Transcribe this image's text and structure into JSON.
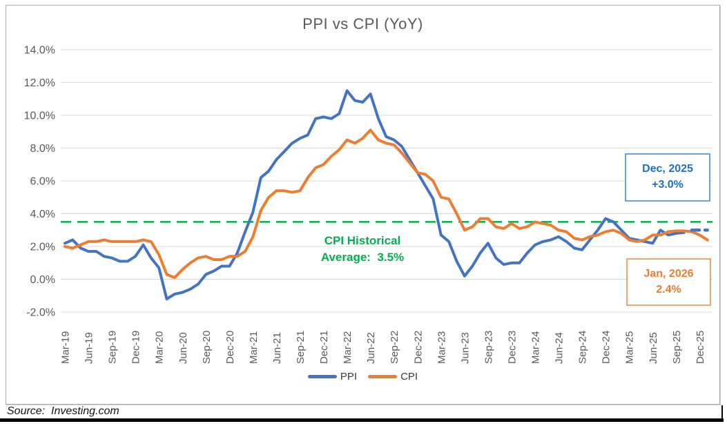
{
  "title": "PPI vs CPI (YoY)",
  "source": "Source:  Investing.com",
  "annotations": {
    "avg_label": {
      "line1": "CPI Historical",
      "line2": "Average:  3.5%"
    },
    "ppi_box": {
      "line1": "Dec, 2025",
      "line2": "+3.0%"
    },
    "cpi_box": {
      "line1": "Jan, 2026",
      "line2": "2.4%"
    }
  },
  "legend": [
    {
      "label": "PPI",
      "color": "#4472C4"
    },
    {
      "label": "CPI",
      "color": "#ED7D31"
    }
  ],
  "colors": {
    "ppi_line": "#4472C4",
    "cpi_line": "#ED7D31",
    "average_line": "#00B050",
    "gridline": "#D9D9D9",
    "axis_text": "#595959",
    "title_text": "#595959",
    "ppi_callout_border": "#6ba3dc",
    "ppi_callout_text": "#1f6fc4",
    "cpi_callout_border": "#f2a470",
    "cpi_callout_text": "#ED7D31"
  },
  "chart_data": {
    "type": "line",
    "title": "PPI vs CPI (YoY)",
    "xlabel": "",
    "ylabel": "",
    "ylim": [
      -2,
      14
    ],
    "y_tick_step": 2,
    "y_ticks": [
      "14.0%",
      "12.0%",
      "10.0%",
      "8.0%",
      "6.0%",
      "4.0%",
      "2.0%",
      "0.0%",
      "-2.0%"
    ],
    "grid": true,
    "legend_position": "bottom",
    "x_start_month": "Mar-19",
    "x_tick_labels": [
      "Mar-19",
      "Jun-19",
      "Sep-19",
      "Dec-19",
      "Mar-20",
      "Jun-20",
      "Sep-20",
      "Dec-20",
      "Mar-21",
      "Jun-21",
      "Sep-21",
      "Dec-21",
      "Mar-22",
      "Jun-22",
      "Sep-22",
      "Dec-22",
      "Mar-23",
      "Jun-23",
      "Sep-23",
      "Dec-23",
      "Mar-24",
      "Jun-24",
      "Sep-24",
      "Dec-24",
      "Mar-25",
      "Jun-25",
      "Sep-25",
      "Dec-25"
    ],
    "months_per_tick": 3,
    "average_line": {
      "value": 3.5,
      "style": "dashed",
      "label": "CPI Historical Average: 3.5%"
    },
    "series": [
      {
        "name": "PPI",
        "color": "#4472C4",
        "start_index": 0,
        "values": [
          2.2,
          2.4,
          1.9,
          1.7,
          1.7,
          1.4,
          1.3,
          1.1,
          1.1,
          1.4,
          2.1,
          1.3,
          0.7,
          -1.2,
          -0.9,
          -0.8,
          -0.6,
          -0.3,
          0.3,
          0.5,
          0.8,
          0.8,
          1.6,
          2.9,
          4.1,
          6.2,
          6.6,
          7.3,
          7.8,
          8.3,
          8.6,
          8.8,
          9.8,
          9.9,
          9.8,
          10.1,
          11.5,
          10.9,
          10.8,
          11.3,
          9.8,
          8.7,
          8.5,
          8.1,
          7.3,
          6.5,
          5.7,
          4.9,
          2.7,
          2.3,
          1.1,
          0.2,
          0.8,
          1.6,
          2.2,
          1.3,
          0.9,
          1.0,
          1.0,
          1.6,
          2.1,
          2.3,
          2.4,
          2.6,
          2.3,
          1.9,
          1.8,
          2.4,
          3.0,
          3.7,
          3.5,
          3.0,
          2.5,
          2.4,
          2.3,
          2.2,
          3.0,
          2.7,
          2.8,
          2.85
        ],
        "forecast": {
          "style": "dashed",
          "value": 3.0,
          "from_index": 80,
          "to_index": 82,
          "label": "Dec, 2025 +3.0%"
        }
      },
      {
        "name": "CPI",
        "color": "#ED7D31",
        "start_index": 0,
        "values": [
          2.0,
          1.9,
          2.1,
          2.3,
          2.3,
          2.4,
          2.3,
          2.3,
          2.3,
          2.3,
          2.4,
          2.3,
          1.5,
          0.3,
          0.1,
          0.6,
          1.0,
          1.3,
          1.4,
          1.2,
          1.2,
          1.4,
          1.4,
          1.7,
          2.6,
          4.2,
          5.0,
          5.4,
          5.4,
          5.3,
          5.4,
          6.2,
          6.8,
          7.0,
          7.5,
          7.9,
          8.5,
          8.3,
          8.6,
          9.1,
          8.5,
          8.3,
          8.2,
          7.7,
          7.1,
          6.5,
          6.4,
          6.0,
          5.0,
          4.9,
          4.0,
          3.0,
          3.2,
          3.7,
          3.7,
          3.2,
          3.1,
          3.4,
          3.1,
          3.2,
          3.5,
          3.4,
          3.3,
          3.0,
          2.9,
          2.5,
          2.4,
          2.6,
          2.7,
          2.9,
          3.0,
          2.8,
          2.4,
          2.3,
          2.4,
          2.7,
          2.7,
          2.9,
          2.95,
          2.95,
          2.9,
          2.7,
          2.4
        ],
        "last_point_label": "Jan, 2026 2.4%"
      }
    ]
  }
}
